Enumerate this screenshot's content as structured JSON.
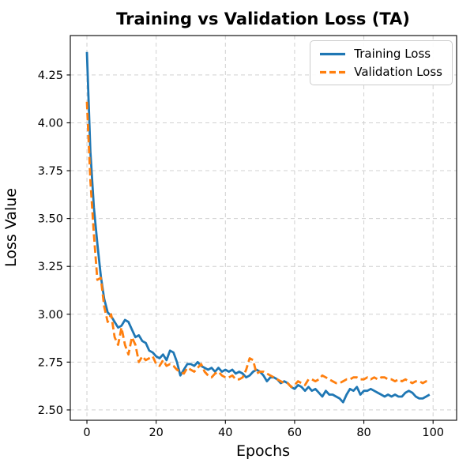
{
  "chart_data": {
    "type": "line",
    "title": "Training vs Validation Loss (TA)",
    "xlabel": "Epochs",
    "ylabel": "Loss Value",
    "grid": true,
    "grid_style": "dashed",
    "grid_color": "#d0d0d0",
    "legend_position": "upper right",
    "xlim": [
      -4.8,
      106.8
    ],
    "ylim": [
      2.446,
      4.456
    ],
    "xticks": [
      0,
      20,
      40,
      60,
      80,
      100
    ],
    "xtick_labels": [
      "0",
      "20",
      "40",
      "60",
      "80",
      "100"
    ],
    "yticks": [
      2.5,
      2.75,
      3.0,
      3.25,
      3.5,
      3.75,
      4.0,
      4.25
    ],
    "ytick_labels": [
      "2.50",
      "2.75",
      "3.00",
      "3.25",
      "3.50",
      "3.75",
      "4.00",
      "4.25"
    ],
    "x": [
      0,
      1,
      2,
      3,
      4,
      5,
      6,
      7,
      8,
      9,
      10,
      11,
      12,
      13,
      14,
      15,
      16,
      17,
      18,
      19,
      20,
      21,
      22,
      23,
      24,
      25,
      26,
      27,
      28,
      29,
      30,
      31,
      32,
      33,
      34,
      35,
      36,
      37,
      38,
      39,
      40,
      41,
      42,
      43,
      44,
      45,
      46,
      47,
      48,
      49,
      50,
      51,
      52,
      53,
      54,
      55,
      56,
      57,
      58,
      59,
      60,
      61,
      62,
      63,
      64,
      65,
      66,
      67,
      68,
      69,
      70,
      71,
      72,
      73,
      74,
      75,
      76,
      77,
      78,
      79,
      80,
      81,
      82,
      83,
      84,
      85,
      86,
      87,
      88,
      89,
      90,
      91,
      92,
      93,
      94,
      95,
      96,
      97,
      98,
      99
    ],
    "series": [
      {
        "name": "Training Loss",
        "color": "#1f77b4",
        "style": "solid",
        "values": [
          4.37,
          3.85,
          3.56,
          3.37,
          3.2,
          3.08,
          3.01,
          2.99,
          2.96,
          2.93,
          2.94,
          2.97,
          2.96,
          2.92,
          2.88,
          2.89,
          2.86,
          2.85,
          2.81,
          2.8,
          2.78,
          2.77,
          2.79,
          2.76,
          2.81,
          2.8,
          2.75,
          2.68,
          2.71,
          2.74,
          2.74,
          2.73,
          2.75,
          2.73,
          2.72,
          2.71,
          2.72,
          2.7,
          2.72,
          2.7,
          2.71,
          2.7,
          2.71,
          2.69,
          2.7,
          2.69,
          2.67,
          2.68,
          2.7,
          2.71,
          2.7,
          2.68,
          2.65,
          2.67,
          2.67,
          2.66,
          2.64,
          2.65,
          2.64,
          2.62,
          2.61,
          2.63,
          2.62,
          2.6,
          2.62,
          2.6,
          2.61,
          2.59,
          2.57,
          2.6,
          2.58,
          2.58,
          2.57,
          2.56,
          2.54,
          2.58,
          2.61,
          2.6,
          2.62,
          2.58,
          2.6,
          2.6,
          2.61,
          2.6,
          2.59,
          2.58,
          2.57,
          2.58,
          2.57,
          2.58,
          2.57,
          2.57,
          2.59,
          2.6,
          2.59,
          2.57,
          2.56,
          2.56,
          2.57,
          2.58
        ]
      },
      {
        "name": "Validation Loss",
        "color": "#ff7f0e",
        "style": "dashed",
        "values": [
          4.11,
          3.7,
          3.42,
          3.18,
          3.19,
          3.04,
          2.96,
          3.0,
          2.88,
          2.84,
          2.93,
          2.84,
          2.79,
          2.88,
          2.84,
          2.75,
          2.78,
          2.76,
          2.77,
          2.78,
          2.74,
          2.73,
          2.76,
          2.73,
          2.74,
          2.73,
          2.71,
          2.7,
          2.69,
          2.72,
          2.71,
          2.7,
          2.72,
          2.74,
          2.7,
          2.68,
          2.67,
          2.69,
          2.7,
          2.68,
          2.67,
          2.67,
          2.68,
          2.66,
          2.66,
          2.67,
          2.71,
          2.77,
          2.76,
          2.69,
          2.7,
          2.7,
          2.69,
          2.68,
          2.67,
          2.66,
          2.65,
          2.64,
          2.64,
          2.62,
          2.63,
          2.65,
          2.64,
          2.63,
          2.66,
          2.66,
          2.65,
          2.66,
          2.68,
          2.67,
          2.66,
          2.65,
          2.64,
          2.64,
          2.65,
          2.66,
          2.66,
          2.67,
          2.67,
          2.66,
          2.66,
          2.67,
          2.66,
          2.67,
          2.66,
          2.67,
          2.67,
          2.66,
          2.66,
          2.65,
          2.66,
          2.65,
          2.66,
          2.65,
          2.64,
          2.65,
          2.65,
          2.64,
          2.65,
          2.65
        ]
      }
    ]
  }
}
